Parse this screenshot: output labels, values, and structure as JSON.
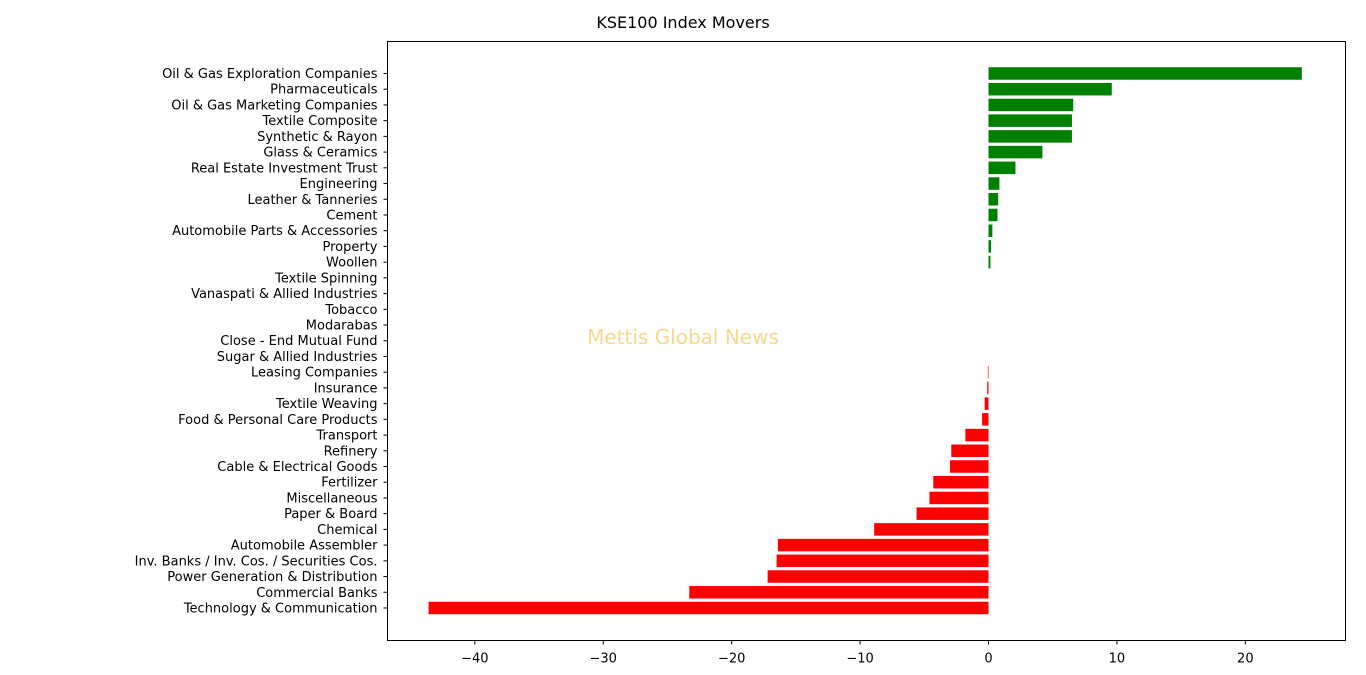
{
  "watermark": "Mettis Global News",
  "chart_data": {
    "type": "bar",
    "orientation": "horizontal",
    "title": "KSE100 Index Movers",
    "xlabel": "",
    "ylabel": "",
    "xlim": [
      -46.8,
      27.8
    ],
    "xticks": [
      -40,
      -30,
      -20,
      -10,
      0,
      10,
      20
    ],
    "grid": false,
    "positive_color": "#008000",
    "negative_color": "#ff0000",
    "categories": [
      "Oil & Gas Exploration Companies",
      "Pharmaceuticals",
      "Oil & Gas Marketing Companies",
      "Textile Composite",
      "Synthetic & Rayon",
      "Glass & Ceramics",
      "Real Estate Investment Trust",
      "Engineering",
      "Leather & Tanneries",
      "Cement",
      "Automobile Parts & Accessories",
      "Property",
      "Woollen",
      "Textile Spinning",
      "Vanaspati & Allied Industries",
      "Tobacco",
      "Modarabas",
      "Close - End Mutual Fund",
      "Sugar & Allied Industries",
      "Leasing Companies",
      "Insurance",
      "Textile Weaving",
      "Food & Personal Care Products",
      "Transport",
      "Refinery",
      "Cable & Electrical Goods",
      "Fertilizer",
      "Miscellaneous",
      "Paper & Board",
      "Chemical",
      "Automobile Assembler",
      "Inv. Banks / Inv. Cos. / Securities Cos.",
      "Power Generation & Distribution",
      "Commercial Banks",
      "Technology & Communication"
    ],
    "values": [
      24.4,
      9.6,
      6.6,
      6.5,
      6.5,
      4.2,
      2.1,
      0.85,
      0.75,
      0.7,
      0.3,
      0.2,
      0.15,
      0,
      0,
      0,
      0,
      0,
      0,
      -0.05,
      -0.1,
      -0.3,
      -0.5,
      -1.8,
      -2.9,
      -3.0,
      -4.3,
      -4.6,
      -5.6,
      -8.9,
      -16.4,
      -16.5,
      -17.2,
      -23.3,
      -43.6
    ]
  }
}
